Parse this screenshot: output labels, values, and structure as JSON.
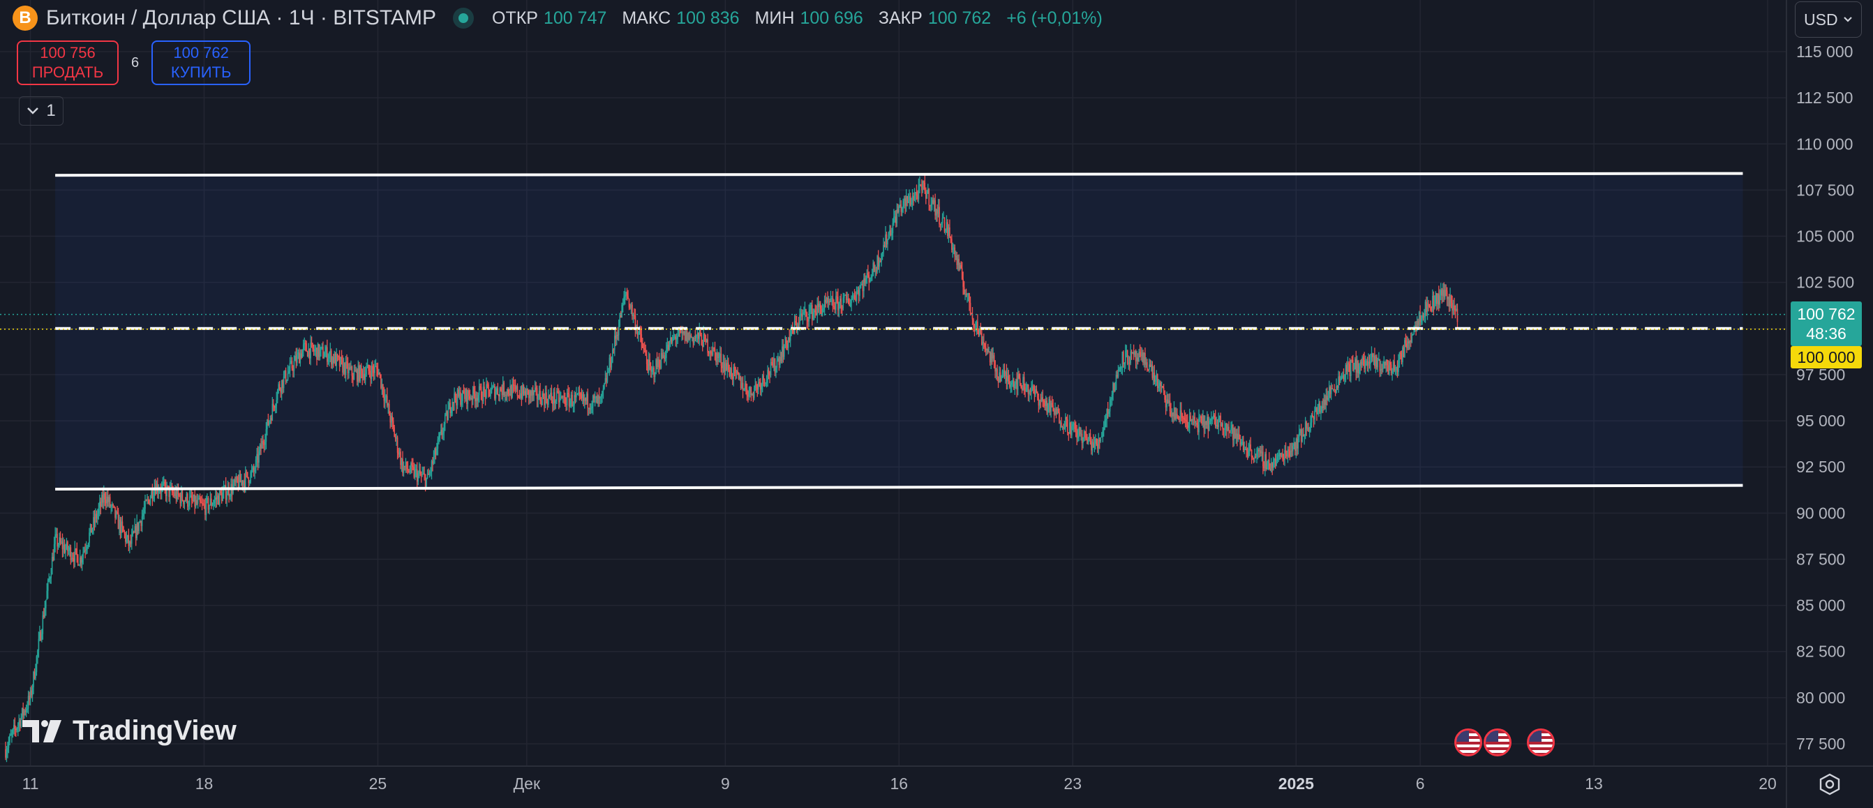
{
  "header": {
    "coin_icon": "B",
    "title": "Биткоин / Доллар США · 1Ч · BITSTAMP",
    "ohlc": [
      {
        "key": "ОТКР",
        "value": "100 747"
      },
      {
        "key": "МАКС",
        "value": "100 836"
      },
      {
        "key": "МИН",
        "value": "100 696"
      },
      {
        "key": "ЗАКР",
        "value": "100 762"
      }
    ],
    "change": "+6 (+0,01%)"
  },
  "trade": {
    "sell_price": "100 756",
    "sell_label": "ПРОДАТЬ",
    "spread": "6",
    "buy_price": "100 762",
    "buy_label": "КУПИТЬ"
  },
  "collapse_label": "1",
  "currency": "USD",
  "price_tag": {
    "price": "100 762",
    "countdown": "48:36"
  },
  "level_tag": "100 000",
  "logo_text": "TradingView",
  "colors": {
    "up": "#26a69a",
    "down": "#ef5350",
    "bg": "#161a25",
    "grid": "#232632",
    "line": "#ffffff",
    "level": "#f5d90a"
  },
  "icons": [
    "bitcoin-icon",
    "chevron-down-icon",
    "us-flag-icon",
    "settings-icon"
  ],
  "chart_data": {
    "type": "candlestick",
    "xlim": [
      "2024-11-10",
      "2025-01-20"
    ],
    "ylim": [
      76800,
      116000
    ],
    "x_ticks": [
      {
        "date": "2024-11-11",
        "label": "11"
      },
      {
        "date": "2024-11-18",
        "label": "18"
      },
      {
        "date": "2024-11-25",
        "label": "25"
      },
      {
        "date": "2024-12-01",
        "label": "Дек"
      },
      {
        "date": "2024-12-09",
        "label": "9"
      },
      {
        "date": "2024-12-16",
        "label": "16"
      },
      {
        "date": "2024-12-23",
        "label": "23"
      },
      {
        "date": "2025-01-01",
        "label": "2025",
        "bold": true
      },
      {
        "date": "2025-01-06",
        "label": "6"
      },
      {
        "date": "2025-01-13",
        "label": "13"
      },
      {
        "date": "2025-01-20",
        "label": "20"
      }
    ],
    "y_ticks": [
      {
        "value": 77500,
        "label": "77 500"
      },
      {
        "value": 80000,
        "label": "80 000"
      },
      {
        "value": 82500,
        "label": "82 500"
      },
      {
        "value": 85000,
        "label": "85 000"
      },
      {
        "value": 87500,
        "label": "87 500"
      },
      {
        "value": 90000,
        "label": "90 000"
      },
      {
        "value": 92500,
        "label": "92 500"
      },
      {
        "value": 95000,
        "label": "95 000"
      },
      {
        "value": 97500,
        "label": "97 500"
      },
      {
        "value": 100000,
        "label": "100 000"
      },
      {
        "value": 102500,
        "label": "102 500"
      },
      {
        "value": 105000,
        "label": "105 000"
      },
      {
        "value": 107500,
        "label": "107 500"
      },
      {
        "value": 110000,
        "label": "110 000"
      },
      {
        "value": 112500,
        "label": "112 500"
      },
      {
        "value": 115000,
        "label": "115 000"
      }
    ],
    "price_path": [
      [
        "2024-11-10",
        77200
      ],
      [
        "2024-11-11",
        80000
      ],
      [
        "2024-11-12",
        88500
      ],
      [
        "2024-11-13",
        87500
      ],
      [
        "2024-11-14",
        91000
      ],
      [
        "2024-11-15",
        88200
      ],
      [
        "2024-11-16",
        91500
      ],
      [
        "2024-11-18",
        90300
      ],
      [
        "2024-11-20",
        92200
      ],
      [
        "2024-11-21",
        96800
      ],
      [
        "2024-11-22",
        98900
      ],
      [
        "2024-11-23",
        98600
      ],
      [
        "2024-11-24",
        97500
      ],
      [
        "2024-11-25",
        97800
      ],
      [
        "2024-11-26",
        92500
      ],
      [
        "2024-11-27",
        91800
      ],
      [
        "2024-11-28",
        96200
      ],
      [
        "2024-11-30",
        96700
      ],
      [
        "2024-12-02",
        96200
      ],
      [
        "2024-12-04",
        96000
      ],
      [
        "2024-12-05",
        102000
      ],
      [
        "2024-12-06",
        97500
      ],
      [
        "2024-12-07",
        99600
      ],
      [
        "2024-12-08",
        99500
      ],
      [
        "2024-12-10",
        96500
      ],
      [
        "2024-12-11",
        98000
      ],
      [
        "2024-12-12",
        100600
      ],
      [
        "2024-12-13",
        101200
      ],
      [
        "2024-12-14",
        101500
      ],
      [
        "2024-12-15",
        103200
      ],
      [
        "2024-12-16",
        106500
      ],
      [
        "2024-12-17",
        107600
      ],
      [
        "2024-12-18",
        105200
      ],
      [
        "2024-12-19",
        100500
      ],
      [
        "2024-12-20",
        97500
      ],
      [
        "2024-12-21",
        97000
      ],
      [
        "2024-12-22",
        95800
      ],
      [
        "2024-12-23",
        94500
      ],
      [
        "2024-12-24",
        93600
      ],
      [
        "2024-12-25",
        98500
      ],
      [
        "2024-12-26",
        98200
      ],
      [
        "2024-12-27",
        95400
      ],
      [
        "2024-12-28",
        94800
      ],
      [
        "2024-12-29",
        95000
      ],
      [
        "2024-12-30",
        93500
      ],
      [
        "2024-12-31",
        92600
      ],
      [
        "2025-01-01",
        93800
      ],
      [
        "2025-01-02",
        95800
      ],
      [
        "2025-01-03",
        97800
      ],
      [
        "2025-01-04",
        98200
      ],
      [
        "2025-01-05",
        97800
      ],
      [
        "2025-01-06",
        100800
      ],
      [
        "2025-01-07",
        102000
      ],
      [
        "2025-01-07T12",
        100762
      ]
    ],
    "annotations": [
      {
        "type": "horizontal-line",
        "from": "2024-11-12",
        "to": "2025-01-19",
        "y_start": 108300,
        "y_end": 108400
      },
      {
        "type": "horizontal-line",
        "from": "2024-11-12",
        "to": "2025-01-19",
        "y_start": 91300,
        "y_end": 91500
      },
      {
        "type": "dashed-line",
        "from": "2024-11-12",
        "to": "2025-01-19",
        "y": 100000
      },
      {
        "type": "range-fill",
        "from": "2024-11-12",
        "to": "2025-01-19",
        "y_low": 91400,
        "y_high": 108300
      },
      {
        "type": "dotted-line",
        "y": 100762,
        "label": "current price"
      }
    ],
    "title": "",
    "xlabel": "",
    "ylabel": "",
    "grid": true,
    "legend": "none"
  }
}
